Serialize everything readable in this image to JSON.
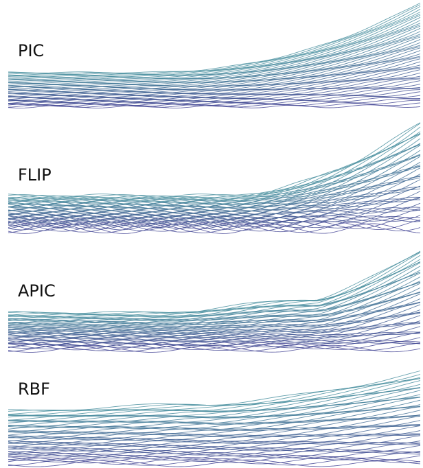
{
  "panels": [
    {
      "label": "PIC"
    },
    {
      "label": "FLIP"
    },
    {
      "label": "APIC"
    },
    {
      "label": "RBF"
    }
  ]
}
